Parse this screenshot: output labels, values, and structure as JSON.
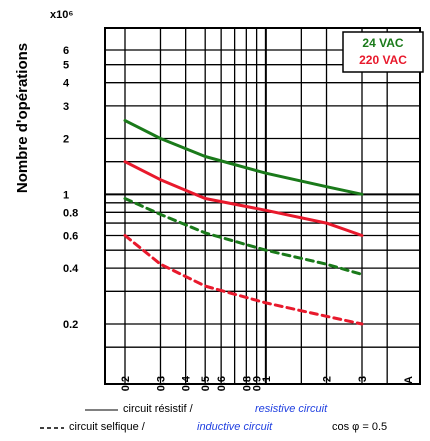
{
  "chart_data": {
    "type": "line",
    "title": "",
    "ylabel": "Nombre d'opérations",
    "y_unit": "x10⁶",
    "xlabel_unit": "A",
    "x_scale": "log",
    "y_scale": "log",
    "xlim": [
      0.1,
      4.5
    ],
    "ylim": [
      0.1,
      9
    ],
    "x_ticks": [
      {
        "value": 0.2,
        "label": "0.2"
      },
      {
        "value": 0.3,
        "label": "0.3"
      },
      {
        "value": 0.4,
        "label": "0.4"
      },
      {
        "value": 0.5,
        "label": "0.5"
      },
      {
        "value": 0.6,
        "label": "0.6"
      },
      {
        "value": 0.8,
        "label": "0.8"
      },
      {
        "value": 0.9,
        "label": "0.9"
      },
      {
        "value": 1,
        "label": "1"
      },
      {
        "value": 2,
        "label": "2"
      },
      {
        "value": 3,
        "label": "3"
      }
    ],
    "y_ticks": [
      {
        "value": 0.2,
        "label": "0.2"
      },
      {
        "value": 0.4,
        "label": "0.4"
      },
      {
        "value": 0.6,
        "label": "0.6"
      },
      {
        "value": 0.8,
        "label": "0.8"
      },
      {
        "value": 1,
        "label": "1"
      },
      {
        "value": 2,
        "label": "2"
      },
      {
        "value": 3,
        "label": "3"
      },
      {
        "value": 4,
        "label": "4"
      },
      {
        "value": 5,
        "label": "5"
      },
      {
        "value": 6,
        "label": "6"
      }
    ],
    "series": [
      {
        "name": "24 VAC",
        "color": "#1a7a1a",
        "dash": false,
        "x": [
          0.2,
          0.3,
          0.5,
          1,
          2,
          3
        ],
        "y": [
          2.5,
          2.0,
          1.6,
          1.3,
          1.1,
          1.0
        ]
      },
      {
        "name": "220 VAC",
        "color": "#e8192c",
        "dash": false,
        "x": [
          0.2,
          0.3,
          0.5,
          1,
          2,
          3
        ],
        "y": [
          1.5,
          1.2,
          0.95,
          0.82,
          0.7,
          0.6
        ]
      },
      {
        "name": "24 VAC",
        "color": "#1a7a1a",
        "dash": true,
        "x": [
          0.2,
          0.3,
          0.5,
          1,
          2,
          3
        ],
        "y": [
          0.95,
          0.78,
          0.62,
          0.5,
          0.42,
          0.37
        ]
      },
      {
        "name": "220 VAC",
        "color": "#e8192c",
        "dash": true,
        "x": [
          0.2,
          0.3,
          0.5,
          1,
          2,
          3
        ],
        "y": [
          0.6,
          0.42,
          0.32,
          0.26,
          0.22,
          0.2
        ]
      }
    ],
    "legend_box": [
      {
        "label": "24 VAC",
        "color": "#1a7a1a"
      },
      {
        "label": "220 VAC",
        "color": "#e8192c"
      }
    ],
    "legend_placement": "top-right",
    "grid": true
  },
  "footer": {
    "solid_fr": "circuit résistif /",
    "solid_en": "resistive circuit",
    "dashed_fr": "circuit selfique /",
    "dashed_en": "inductive circuit",
    "dashed_cos": "cos φ = 0.5"
  }
}
